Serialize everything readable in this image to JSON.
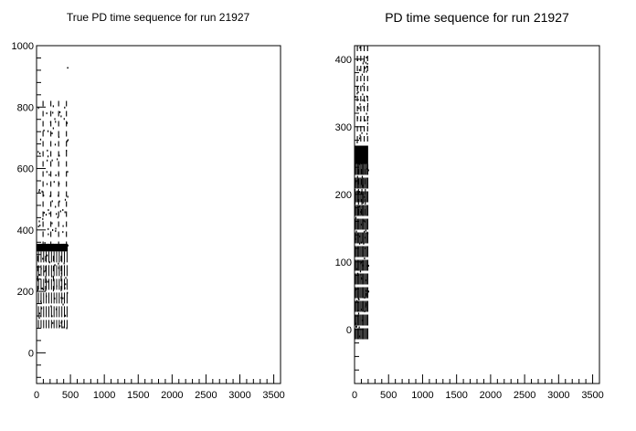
{
  "chart_data": [
    {
      "type": "scatter",
      "title": "True PD time sequence for run 21927",
      "xlim": [
        0,
        3600
      ],
      "ylim": [
        -100,
        1000
      ],
      "x_ticks": [
        "0",
        "500",
        "1000",
        "1500",
        "2000",
        "2500",
        "3000",
        "3500"
      ],
      "y_ticks": [
        "0",
        "200",
        "400",
        "600",
        "800",
        "1000"
      ],
      "grid": false,
      "pattern": {
        "x_range": [
          0,
          460
        ],
        "bottom": 80,
        "stroke_tops": [
          200,
          340,
          820
        ],
        "dense_band": [
          330,
          355
        ],
        "outlier": {
          "x": 450,
          "y": 930
        }
      }
    },
    {
      "type": "scatter",
      "title": "PD time sequence for run 21927",
      "xlim": [
        0,
        3600
      ],
      "ylim": [
        -80,
        420
      ],
      "x_ticks": [
        "0",
        "500",
        "1000",
        "1500",
        "2000",
        "2500",
        "3000",
        "3500"
      ],
      "y_ticks": [
        "0",
        "100",
        "200",
        "300",
        "400"
      ],
      "grid": false,
      "pattern": {
        "x_range": [
          0,
          200
        ],
        "bottom": -15,
        "stroke_tops": [
          170,
          260,
          420
        ],
        "dense_band": [
          245,
          272
        ],
        "outlier": null
      }
    }
  ]
}
